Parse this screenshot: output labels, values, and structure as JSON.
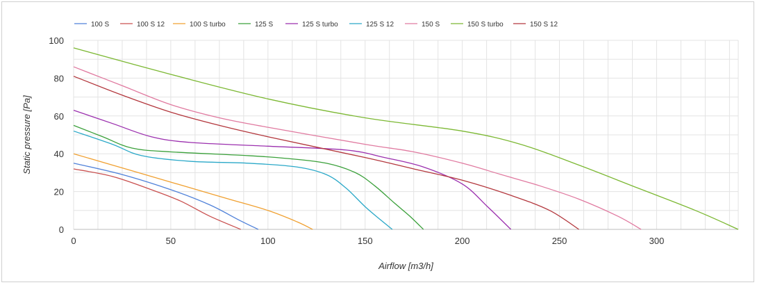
{
  "chart_data": {
    "type": "line",
    "title": "",
    "xlabel": "Airflow [m3/h]",
    "ylabel": "Static pressure [Pa]",
    "xlim": [
      0,
      342
    ],
    "ylim": [
      0,
      100
    ],
    "xticks": [
      0,
      50,
      100,
      150,
      200,
      250,
      300
    ],
    "yticks": [
      0,
      20,
      40,
      60,
      80,
      100
    ],
    "grid": true,
    "legend_position": "top-left",
    "series": [
      {
        "name": "100 S",
        "color": "#4f81d9",
        "points": [
          [
            0,
            35
          ],
          [
            25,
            29
          ],
          [
            50,
            21
          ],
          [
            70,
            13
          ],
          [
            85,
            5
          ],
          [
            95,
            0
          ]
        ]
      },
      {
        "name": "100 S 12",
        "color": "#c9504f",
        "points": [
          [
            0,
            32
          ],
          [
            20,
            28
          ],
          [
            40,
            21
          ],
          [
            55,
            15
          ],
          [
            70,
            7
          ],
          [
            86,
            0
          ]
        ]
      },
      {
        "name": "100 S turbo",
        "color": "#f0a030",
        "points": [
          [
            0,
            40
          ],
          [
            30,
            31
          ],
          [
            60,
            22
          ],
          [
            80,
            16
          ],
          [
            100,
            10
          ],
          [
            115,
            4
          ],
          [
            123,
            0
          ]
        ]
      },
      {
        "name": "125 S",
        "color": "#3aa03a",
        "points": [
          [
            0,
            55
          ],
          [
            15,
            49
          ],
          [
            30,
            43
          ],
          [
            50,
            41
          ],
          [
            90,
            39
          ],
          [
            110,
            37.5
          ],
          [
            130,
            35
          ],
          [
            145,
            30
          ],
          [
            155,
            23
          ],
          [
            165,
            14
          ],
          [
            173,
            7
          ],
          [
            180,
            0
          ]
        ]
      },
      {
        "name": "125 S turbo",
        "color": "#9b2fae",
        "points": [
          [
            0,
            63
          ],
          [
            20,
            56
          ],
          [
            40,
            49
          ],
          [
            60,
            46
          ],
          [
            100,
            44
          ],
          [
            140,
            42
          ],
          [
            160,
            38
          ],
          [
            180,
            33
          ],
          [
            200,
            24
          ],
          [
            213,
            12
          ],
          [
            225,
            0
          ]
        ]
      },
      {
        "name": "125 S 12",
        "color": "#2aa8c8",
        "points": [
          [
            0,
            52
          ],
          [
            20,
            45
          ],
          [
            35,
            39
          ],
          [
            60,
            36
          ],
          [
            90,
            35
          ],
          [
            115,
            33
          ],
          [
            130,
            29
          ],
          [
            140,
            22
          ],
          [
            150,
            12
          ],
          [
            158,
            5
          ],
          [
            164,
            0
          ]
        ]
      },
      {
        "name": "150 S",
        "color": "#e07aa0",
        "points": [
          [
            0,
            86
          ],
          [
            25,
            76
          ],
          [
            50,
            66
          ],
          [
            75,
            59
          ],
          [
            100,
            54
          ],
          [
            150,
            45
          ],
          [
            175,
            41
          ],
          [
            200,
            35
          ],
          [
            220,
            29
          ],
          [
            240,
            23
          ],
          [
            260,
            16
          ],
          [
            280,
            7
          ],
          [
            292,
            0
          ]
        ]
      },
      {
        "name": "150 S turbo",
        "color": "#7cb833",
        "points": [
          [
            0,
            96
          ],
          [
            50,
            82
          ],
          [
            100,
            69
          ],
          [
            150,
            59
          ],
          [
            200,
            52
          ],
          [
            230,
            45
          ],
          [
            260,
            34
          ],
          [
            290,
            22
          ],
          [
            320,
            10
          ],
          [
            342,
            0
          ]
        ]
      },
      {
        "name": "150 S 12",
        "color": "#b3373d",
        "points": [
          [
            0,
            81
          ],
          [
            25,
            71
          ],
          [
            50,
            62
          ],
          [
            75,
            55
          ],
          [
            100,
            49
          ],
          [
            150,
            38
          ],
          [
            175,
            32
          ],
          [
            200,
            26
          ],
          [
            225,
            18
          ],
          [
            245,
            10
          ],
          [
            260,
            0
          ]
        ]
      }
    ]
  }
}
